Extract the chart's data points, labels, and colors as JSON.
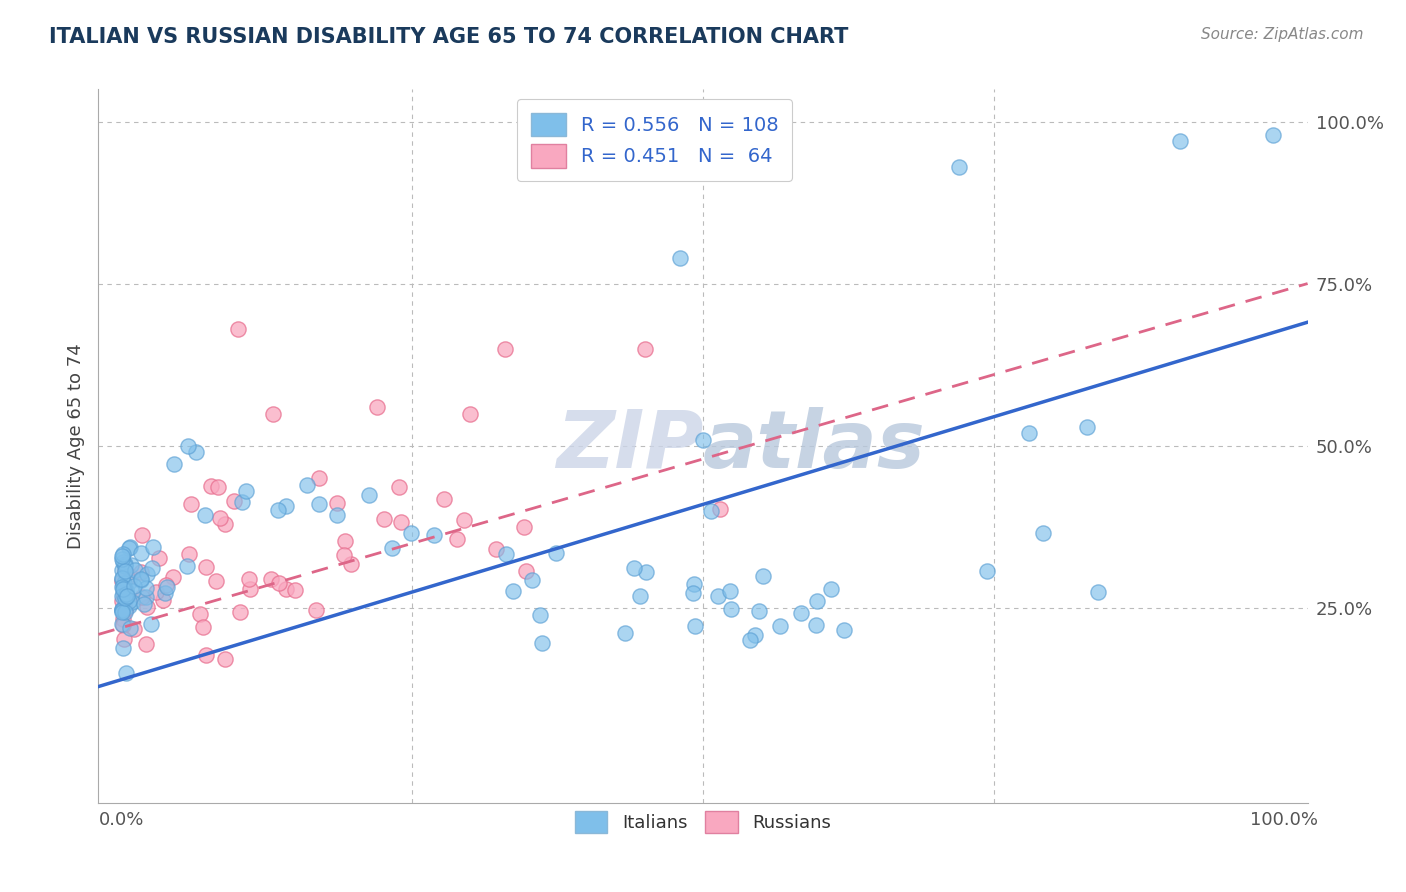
{
  "title": "ITALIAN VS RUSSIAN DISABILITY AGE 65 TO 74 CORRELATION CHART",
  "source_text": "Source: ZipAtlas.com",
  "ylabel": "Disability Age 65 to 74",
  "xlim": [
    -0.02,
    1.02
  ],
  "ylim": [
    -0.05,
    1.05
  ],
  "italian_color": "#7fbfea",
  "italian_edge_color": "#5a9fd4",
  "russian_color": "#f9a8c0",
  "russian_edge_color": "#e87090",
  "italian_R": 0.556,
  "italian_N": 108,
  "russian_R": 0.451,
  "russian_N": 64,
  "title_color": "#1a3a5c",
  "source_color": "#888888",
  "watermark_color": "#ccd5e8",
  "background_color": "#ffffff",
  "grid_color": "#bbbbbb",
  "italian_line_color": "#3366cc",
  "russian_line_color": "#dd6688",
  "legend_text_color": "#3366cc"
}
